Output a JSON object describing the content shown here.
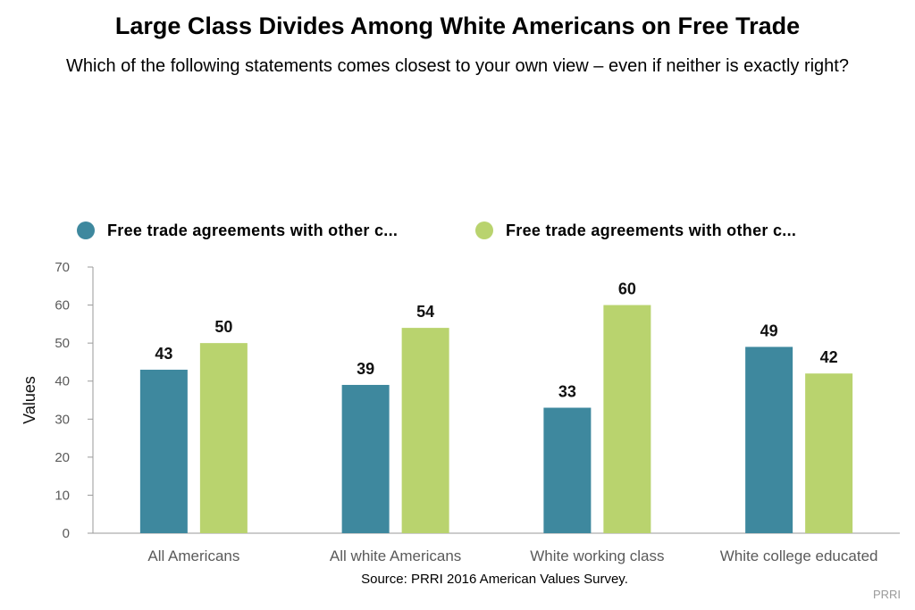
{
  "chart_data": {
    "type": "bar",
    "title": "Large Class Divides Among White Americans on Free Trade",
    "subtitle": "Which of the following statements comes closest to your own view – even if neither is exactly right?",
    "categories": [
      "All Americans",
      "All white Americans",
      "White working class",
      "White college educated"
    ],
    "series": [
      {
        "name": "Free trade agreements with other c...",
        "color": "#3e889e",
        "values": [
          43,
          39,
          33,
          49
        ]
      },
      {
        "name": "Free trade agreements with other c...",
        "color": "#b9d36e",
        "values": [
          50,
          54,
          60,
          42
        ]
      }
    ],
    "ylabel": "Values",
    "xlabel": "",
    "ylim": [
      0,
      70
    ],
    "yticks": [
      0,
      10,
      20,
      30,
      40,
      50,
      60,
      70
    ],
    "grid": false,
    "legend_position": "top",
    "source": "Source: PRRI 2016 American Values Survey.",
    "credit": "PRRI"
  }
}
